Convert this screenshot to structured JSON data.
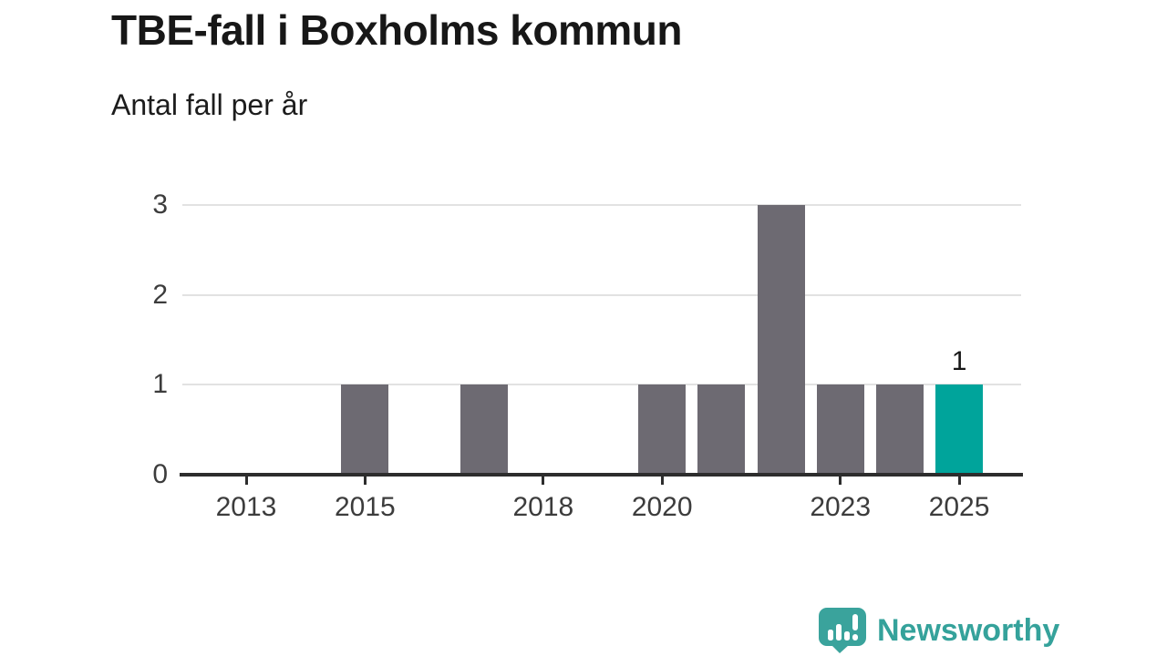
{
  "header": {
    "title": "TBE-fall i Boxholms kommun",
    "subtitle": "Antal fall per år"
  },
  "chart_data": {
    "type": "bar",
    "title": "TBE-fall i Boxholms kommun",
    "subtitle": "Antal fall per år",
    "categories": [
      2013,
      2014,
      2015,
      2016,
      2017,
      2018,
      2019,
      2020,
      2021,
      2022,
      2023,
      2024,
      2025
    ],
    "values": [
      0,
      0,
      1,
      0,
      1,
      0,
      0,
      1,
      1,
      3,
      1,
      1,
      1
    ],
    "highlight_category": 2025,
    "highlight_value_label": "1",
    "xticks": [
      2013,
      2015,
      2018,
      2020,
      2023,
      2025
    ],
    "yticks": [
      0,
      1,
      2,
      3
    ],
    "ylim": [
      0,
      3
    ],
    "xlabel": "",
    "ylabel": "Antal fall per år",
    "grid": "horizontal",
    "legend": "none",
    "colors": {
      "bar": "#6d6a72",
      "highlight": "#00a49b",
      "axis": "#2d2d2d",
      "gridline": "#e2e2e2",
      "tick_label": "#3c3c3c"
    }
  },
  "footer": {
    "brand": "Newsworthy",
    "logo_icon": "newsworthy-speech-bubble-bars-icon",
    "brand_color": "#35a29b",
    "icon_color": "#3aa39c"
  }
}
